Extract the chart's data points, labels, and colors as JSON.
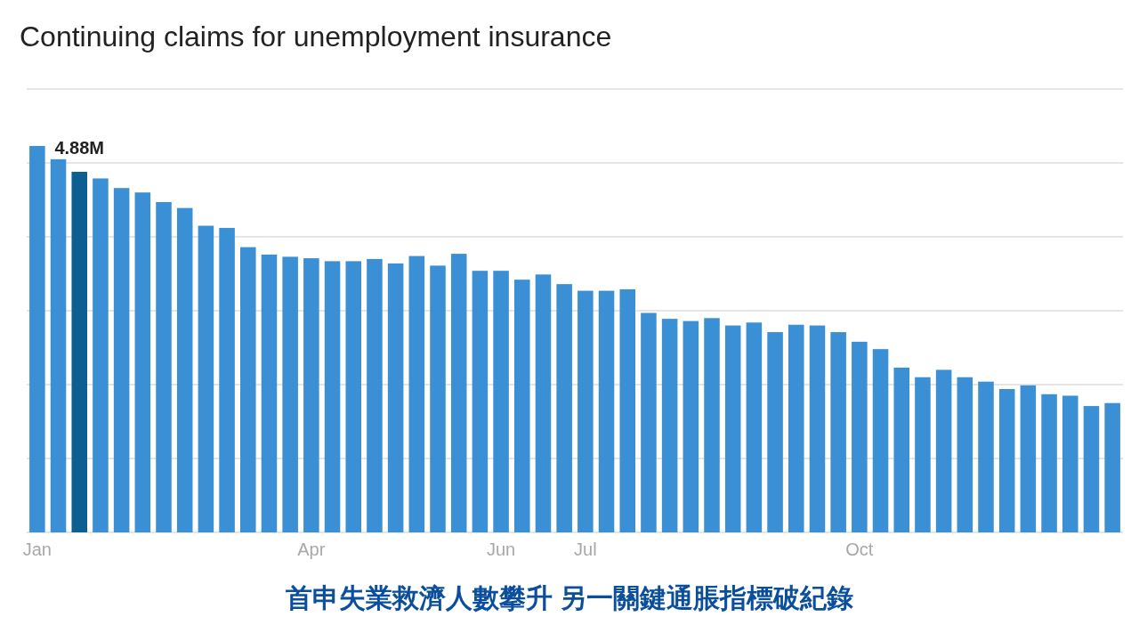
{
  "chart_data": {
    "type": "bar",
    "title": "Continuing claims for unemployment insurance",
    "categories": [
      "Jan",
      null,
      null,
      null,
      null,
      null,
      null,
      null,
      null,
      null,
      null,
      null,
      null,
      "Apr",
      null,
      null,
      null,
      null,
      null,
      null,
      null,
      null,
      "Jun",
      null,
      null,
      null,
      "Jul",
      null,
      null,
      null,
      null,
      null,
      null,
      null,
      null,
      null,
      null,
      null,
      null,
      "Oct",
      null,
      null,
      null,
      null,
      null,
      null,
      null,
      null,
      null,
      null,
      null,
      null
    ],
    "values": [
      5.23,
      5.05,
      4.88,
      4.79,
      4.66,
      4.6,
      4.47,
      4.39,
      4.15,
      4.12,
      3.86,
      3.76,
      3.73,
      3.71,
      3.67,
      3.67,
      3.7,
      3.64,
      3.74,
      3.61,
      3.77,
      3.54,
      3.54,
      3.42,
      3.49,
      3.36,
      3.27,
      3.27,
      3.29,
      2.97,
      2.89,
      2.86,
      2.9,
      2.8,
      2.84,
      2.71,
      2.81,
      2.8,
      2.71,
      2.58,
      2.48,
      2.23,
      2.1,
      2.2,
      2.1,
      2.04,
      1.94,
      1.99,
      1.87,
      1.85,
      1.71,
      1.75
    ],
    "colors": [
      "#3b8fd4",
      "#3b8fd4",
      "#0d5f92",
      "#3b8fd4",
      "#3b8fd4",
      "#3b8fd4",
      "#3b8fd4",
      "#3b8fd4",
      "#3b8fd4",
      "#3b8fd4",
      "#3b8fd4",
      "#3b8fd4",
      "#3b8fd4",
      "#3b8fd4",
      "#3b8fd4",
      "#3b8fd4",
      "#3b8fd4",
      "#3b8fd4",
      "#3b8fd4",
      "#3b8fd4",
      "#3b8fd4",
      "#3b8fd4",
      "#3b8fd4",
      "#3b8fd4",
      "#3b8fd4",
      "#3b8fd4",
      "#3b8fd4",
      "#3b8fd4",
      "#3b8fd4",
      "#3b8fd4",
      "#3b8fd4",
      "#3b8fd4",
      "#3b8fd4",
      "#3b8fd4",
      "#3b8fd4",
      "#3b8fd4",
      "#3b8fd4",
      "#3b8fd4",
      "#3b8fd4",
      "#3b8fd4",
      "#3b8fd4",
      "#3b8fd4",
      "#3b8fd4",
      "#3b8fd4",
      "#3b8fd4",
      "#3b8fd4",
      "#3b8fd4",
      "#3b8fd4",
      "#3b8fd4",
      "#3b8fd4",
      "#3b8fd4",
      "#3b8fd4"
    ],
    "value_labels": [
      null,
      null,
      "4.88M",
      null,
      null,
      null,
      null,
      null,
      null,
      null,
      null,
      null,
      null,
      null,
      null,
      null,
      null,
      null,
      null,
      null,
      null,
      null,
      null,
      null,
      null,
      null,
      null,
      null,
      null,
      null,
      null,
      null,
      null,
      null,
      null,
      null,
      null,
      null,
      null,
      null,
      null,
      null,
      null,
      null,
      null,
      null,
      null,
      null,
      null,
      null,
      null,
      null
    ],
    "ylim": [
      0,
      6
    ],
    "yticks": [
      {
        "value": 0,
        "label": null
      },
      {
        "value": 1,
        "label": null
      },
      {
        "value": 2,
        "label": null
      },
      {
        "value": 3,
        "label": null
      },
      {
        "value": 4,
        "label": null
      },
      {
        "value": 5,
        "label": null
      },
      {
        "value": 6,
        "label": null
      }
    ],
    "tick_labels": "x",
    "grid": "y",
    "annotations": [
      "首申失業救濟人數攀升 另一關鍵通脹指標破紀錄"
    ]
  }
}
